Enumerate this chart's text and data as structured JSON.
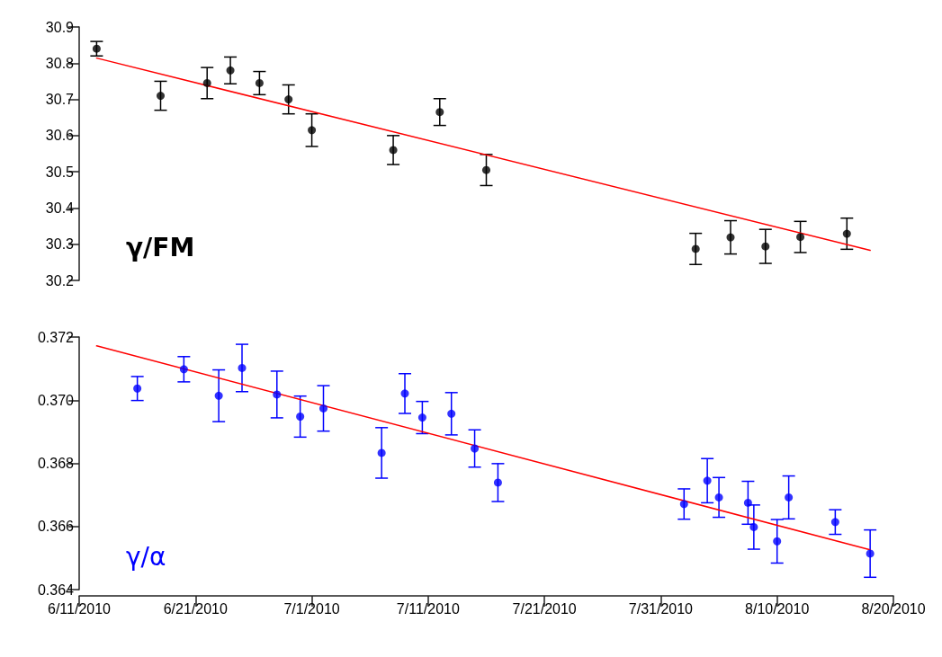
{
  "chart_data": [
    {
      "type": "scatter",
      "xlim": [
        "2010-06-11",
        "2010-08-20"
      ],
      "ylim": [
        30.2,
        30.9
      ],
      "yticks": [
        30.2,
        30.3,
        30.4,
        30.5,
        30.6,
        30.7,
        30.8,
        30.9
      ],
      "tick_labels": "y",
      "grid": false,
      "legend": false,
      "marker": "circle",
      "series": [
        {
          "name": "γ/FM",
          "color": "#000000",
          "x": [
            "2010-06-12T12:00",
            "2010-06-18",
            "2010-06-22",
            "2010-06-24",
            "2010-06-26T12:00",
            "2010-06-29",
            "2010-07-01",
            "2010-07-08",
            "2010-07-12",
            "2010-07-16",
            "2010-08-03",
            "2010-08-06",
            "2010-08-09",
            "2010-08-12",
            "2010-08-16"
          ],
          "values": [
            30.84,
            30.71,
            30.745,
            30.78,
            30.745,
            30.7,
            30.615,
            30.56,
            30.665,
            30.505,
            30.287,
            30.319,
            30.294,
            30.32,
            30.329
          ],
          "errors": [
            0.02,
            0.04,
            0.043,
            0.037,
            0.032,
            0.04,
            0.045,
            0.04,
            0.037,
            0.043,
            0.043,
            0.046,
            0.047,
            0.043,
            0.043
          ]
        },
        {
          "type": "line",
          "color": "#ff0000",
          "marker": "none",
          "x": [
            "2010-06-12T12:00",
            "2010-08-18"
          ],
          "values": [
            30.814,
            30.283
          ]
        }
      ]
    },
    {
      "type": "scatter",
      "xlim": [
        "2010-06-11",
        "2010-08-20"
      ],
      "xticks": [
        {
          "value": "2010-06-11",
          "label": "6/11/2010"
        },
        {
          "value": "2010-06-21",
          "label": "6/21/2010"
        },
        {
          "value": "2010-07-01",
          "label": "7/1/2010"
        },
        {
          "value": "2010-07-11",
          "label": "7/11/2010"
        },
        {
          "value": "2010-07-21",
          "label": "7/21/2010"
        },
        {
          "value": "2010-07-31",
          "label": "7/31/2010"
        },
        {
          "value": "2010-08-10",
          "label": "8/10/2010"
        },
        {
          "value": "2010-08-20",
          "label": "8/20/2010"
        }
      ],
      "ylim": [
        0.364,
        0.372
      ],
      "yticks": [
        {
          "value": 0.364,
          "label": "0.364"
        },
        {
          "value": 0.366,
          "label": "0.366"
        },
        {
          "value": 0.368,
          "label": "0.368"
        },
        {
          "value": 0.37,
          "label": "0.370"
        },
        {
          "value": 0.372,
          "label": "0.372"
        }
      ],
      "grid": false,
      "legend": false,
      "marker": "circle",
      "series": [
        {
          "name": "γ/α",
          "color": "#0000ff",
          "x": [
            "2010-06-16",
            "2010-06-20",
            "2010-06-23",
            "2010-06-25",
            "2010-06-28",
            "2010-06-30",
            "2010-07-02",
            "2010-07-07",
            "2010-07-09",
            "2010-07-10T12:00",
            "2010-07-13",
            "2010-07-15",
            "2010-07-17",
            "2010-08-02",
            "2010-08-04",
            "2010-08-05",
            "2010-08-07T12:00",
            "2010-08-08",
            "2010-08-10",
            "2010-08-11",
            "2010-08-15",
            "2010-08-18"
          ],
          "values": [
            0.37037,
            0.37098,
            0.37014,
            0.37102,
            0.37018,
            0.36948,
            0.36974,
            0.36833,
            0.37021,
            0.36945,
            0.36957,
            0.36847,
            0.36739,
            0.36671,
            0.36745,
            0.36692,
            0.36675,
            0.36598,
            0.36553,
            0.36692,
            0.36614,
            0.36514
          ],
          "errors": [
            0.00038,
            0.0004,
            0.00082,
            0.00075,
            0.00074,
            0.00065,
            0.00072,
            0.0008,
            0.00063,
            0.00051,
            0.00067,
            0.00059,
            0.0006,
            0.00048,
            0.0007,
            0.00063,
            0.00068,
            0.0007,
            0.00069,
            0.00068,
            0.00039,
            0.00075
          ]
        },
        {
          "type": "line",
          "color": "#ff0000",
          "marker": "none",
          "x": [
            "2010-06-12T12:00",
            "2010-08-18"
          ],
          "values": [
            0.37172,
            0.36526
          ]
        }
      ]
    }
  ]
}
